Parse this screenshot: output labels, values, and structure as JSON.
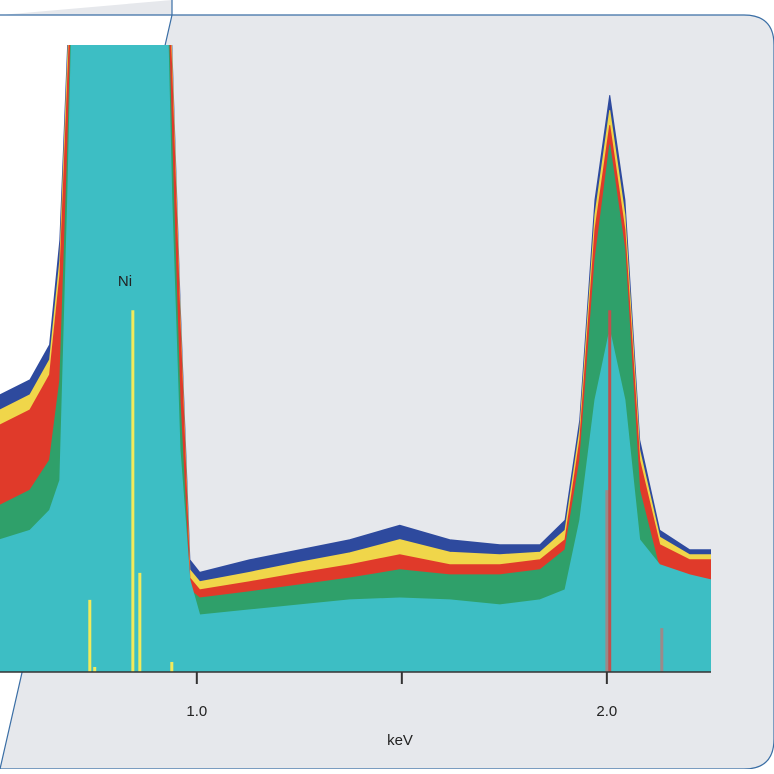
{
  "chart_data": {
    "type": "area",
    "x_label": "keV",
    "annotation": "Ni",
    "x": [
      0.52,
      0.593,
      0.641,
      0.666,
      0.685,
      0.702,
      0.922,
      0.939,
      0.959,
      0.983,
      1.007,
      1.129,
      1.251,
      1.373,
      1.495,
      1.617,
      1.739,
      1.837,
      1.898,
      1.934,
      1.971,
      2.007,
      2.044,
      2.08,
      2.129,
      2.202,
      2.254
    ],
    "series": [
      {
        "color": "#2e4a9e",
        "values": [
          44.2,
          46.6,
          52.2,
          68.9,
          100,
          123,
          123,
          100,
          59.3,
          17.9,
          15.9,
          17.9,
          19.5,
          21.1,
          23.4,
          21.1,
          20.3,
          20.3,
          24.2,
          40.2,
          75.3,
          92.0,
          75.3,
          37.0,
          22.6,
          19.5,
          19.5
        ]
      },
      {
        "color": "#f0d64a",
        "values": [
          41.8,
          44.2,
          49.8,
          65.7,
          97.6,
          123,
          123,
          98.4,
          57.7,
          16.3,
          14.4,
          15.9,
          17.5,
          19.0,
          21.1,
          19.1,
          18.7,
          19.1,
          22.6,
          38.6,
          72.9,
          89.6,
          72.9,
          35.4,
          21.5,
          18.7,
          18.7
        ]
      },
      {
        "color": "#e03a2a",
        "values": [
          39.4,
          41.8,
          47.4,
          63.3,
          94.4,
          123,
          123,
          96.0,
          56.1,
          15.0,
          13.1,
          14.4,
          15.8,
          17.1,
          18.7,
          17.1,
          17.1,
          17.9,
          21.1,
          37.0,
          70.5,
          87.2,
          70.5,
          33.8,
          20.3,
          17.9,
          17.9
        ]
      },
      {
        "color": "#2fa06a",
        "values": [
          26.6,
          29.0,
          33.8,
          46.6,
          83.3,
          123,
          123,
          84.9,
          43.4,
          13.1,
          11.8,
          12.8,
          13.9,
          15.0,
          16.3,
          15.5,
          15.5,
          16.3,
          19.5,
          33.8,
          65.7,
          84.1,
          67.3,
          29.0,
          16.3,
          11.5,
          10.7
        ]
      },
      {
        "color": "#3dbec4",
        "values": [
          21.1,
          22.6,
          25.8,
          30.6,
          75.3,
          123,
          123,
          75.3,
          35.4,
          14.7,
          9.1,
          9.9,
          10.7,
          11.5,
          11.8,
          11.5,
          10.7,
          11.5,
          13.1,
          24.2,
          43.4,
          54.5,
          43.4,
          21.1,
          17.1,
          15.5,
          14.7
        ]
      }
    ],
    "markers": [
      {
        "color": "#f2ea5a",
        "x": [
          0.739,
          0.751,
          0.844,
          0.861,
          0.939
        ],
        "values": [
          11.5,
          0.8,
          57.7,
          15.8,
          1.6
        ]
      },
      {
        "color": "#9a8a8a",
        "x": [
          2.0,
          2.134
        ],
        "values": [
          29.0,
          7.0
        ]
      },
      {
        "color": "#c0504d",
        "x": [
          2.007
        ],
        "values": [
          57.7
        ]
      }
    ],
    "xlim": [
      0.52,
      2.254
    ],
    "ylim": [
      0,
      100
    ],
    "xticks": [
      {
        "value": 1.0,
        "label": "1.0"
      },
      {
        "value": 1.5,
        "label": null
      },
      {
        "value": 2.0,
        "label": "2.0"
      }
    ]
  }
}
